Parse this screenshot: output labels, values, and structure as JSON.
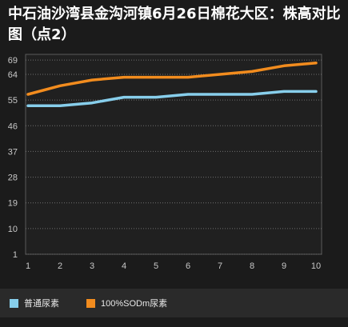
{
  "chart_data": {
    "type": "line",
    "title": "中石油沙湾县金沟河镇6月26日棉花大区：株高对比图（点2）",
    "x": [
      1,
      2,
      3,
      4,
      5,
      6,
      7,
      8,
      9,
      10
    ],
    "y_ticks": [
      1,
      10,
      19,
      28,
      37,
      46,
      55,
      64,
      69
    ],
    "ylim": [
      1,
      71
    ],
    "grid": "horizontal dashed",
    "legend_position": "bottom-left",
    "series": [
      {
        "name": "普通尿素",
        "color": "#87ceeb",
        "values": [
          53,
          53,
          54,
          56,
          56,
          57,
          57,
          57,
          58,
          58
        ]
      },
      {
        "name": "100%SODm尿素",
        "color": "#f28c1e",
        "values": [
          57,
          60,
          62,
          63,
          63,
          63,
          64,
          65,
          67,
          68
        ]
      }
    ]
  }
}
